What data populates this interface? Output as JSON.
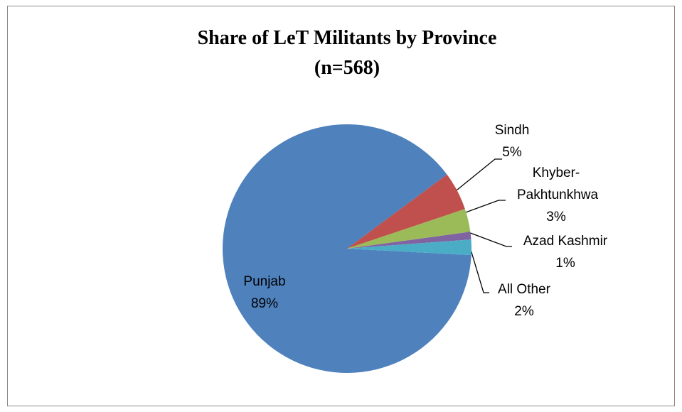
{
  "chart_data": {
    "type": "pie",
    "title": "Share of LeT Militants by Province",
    "subtitle": "(n=568)",
    "categories": [
      "Punjab",
      "Sindh",
      "Khyber-Pakhtunkhwa",
      "Azad Kashmir",
      "All Other"
    ],
    "values": [
      89,
      5,
      3,
      1,
      2
    ],
    "value_labels": [
      "89%",
      "5%",
      "3%",
      "1%",
      "2%"
    ],
    "colors": [
      "#4f81bd",
      "#c0504d",
      "#9bbb59",
      "#8064a2",
      "#4bacc6"
    ]
  }
}
